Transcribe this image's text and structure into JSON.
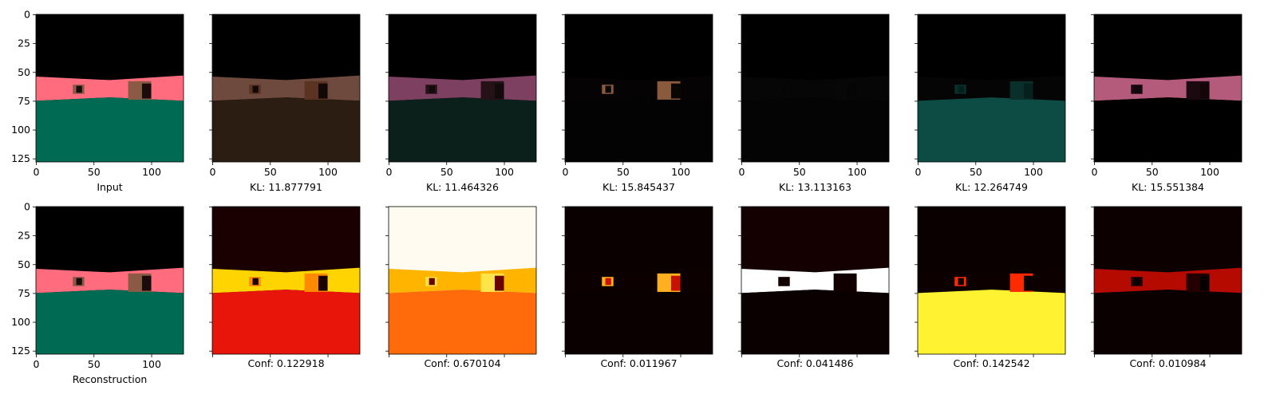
{
  "chart_data": {
    "type": "image_grid",
    "axis_range": [
      0,
      127
    ],
    "y_inverted": true,
    "x_ticks": [
      0,
      50,
      100
    ],
    "y_ticks": [
      0,
      25,
      50,
      75,
      100,
      125
    ],
    "top_row": [
      {
        "label": "Input",
        "render": "scene",
        "colors": {
          "sky": "#000000",
          "wall": "#ff6c7e",
          "floor": "#006b52",
          "box": "#8a5a44",
          "box_dark": "#1a0c0c"
        }
      },
      {
        "label": "KL: 11.877791",
        "render": "scene",
        "colors": {
          "sky": "#000000",
          "wall": "#6e4a3e",
          "floor": "#2c1d12",
          "box": "#5a3322",
          "box_dark": "#120806"
        }
      },
      {
        "label": "KL: 11.464326",
        "render": "scene",
        "colors": {
          "sky": "#000000",
          "wall": "#7e4060",
          "floor": "#0b201a",
          "box": "#251216",
          "box_dark": "#120a0c"
        }
      },
      {
        "label": "KL: 15.845437",
        "render": "scene",
        "colors": {
          "sky": "#000000",
          "wall": "#050303",
          "floor": "#030303",
          "box": "#8a5a3c",
          "box_dark": "#0a0604"
        }
      },
      {
        "label": "KL: 13.113163",
        "render": "scene",
        "colors": {
          "sky": "#000000",
          "wall": "#060606",
          "floor": "#040404",
          "box": "#070707",
          "box_dark": "#050505"
        }
      },
      {
        "label": "KL: 12.264749",
        "render": "scene",
        "colors": {
          "sky": "#000000",
          "wall": "#050505",
          "floor": "#0d4c44",
          "box": "#0a2f2b",
          "box_dark": "#06201d"
        }
      },
      {
        "label": "KL: 15.551384",
        "render": "scene",
        "colors": {
          "sky": "#000000",
          "wall": "#b45a7a",
          "floor": "#000000",
          "box": "#1a0a10",
          "box_dark": "#120609"
        }
      }
    ],
    "bottom_row": [
      {
        "label": "Reconstruction",
        "render": "scene",
        "colors": {
          "sky": "#000000",
          "wall": "#ff6c7e",
          "floor": "#006b52",
          "box": "#8a5a44",
          "box_dark": "#1a0c0c"
        }
      },
      {
        "label": "Conf: 0.122918",
        "render": "heat",
        "colors": {
          "sky": "#1a0000",
          "wall": "#ffd400",
          "floor": "#e8160a",
          "box": "#ff8a00",
          "box_dark": "#1a0000"
        }
      },
      {
        "label": "Conf: 0.670104",
        "render": "heat",
        "colors": {
          "sky": "#fffbf0",
          "wall": "#ffb400",
          "floor": "#ff6a0a",
          "box": "#ffe44a",
          "box_dark": "#6a0000"
        }
      },
      {
        "label": "Conf: 0.011967",
        "render": "heat",
        "colors": {
          "sky": "#0a0000",
          "wall": "#0c0000",
          "floor": "#0a0000",
          "box": "#ffb020",
          "box_dark": "#c81200"
        }
      },
      {
        "label": "Conf: 0.041486",
        "render": "heat",
        "colors": {
          "sky": "#140000",
          "wall": "#ffffff",
          "floor": "#0a0000",
          "box": "#120000",
          "box_dark": "#100000"
        }
      },
      {
        "label": "Conf: 0.142542",
        "render": "heat",
        "colors": {
          "sky": "#0a0000",
          "wall": "#0c0000",
          "floor": "#fff230",
          "box": "#ff2a00",
          "box_dark": "#0a0000"
        }
      },
      {
        "label": "Conf: 0.010984",
        "render": "heat",
        "colors": {
          "sky": "#0c0000",
          "wall": "#b40a00",
          "floor": "#0a0000",
          "box": "#240000",
          "box_dark": "#060000"
        }
      }
    ]
  }
}
